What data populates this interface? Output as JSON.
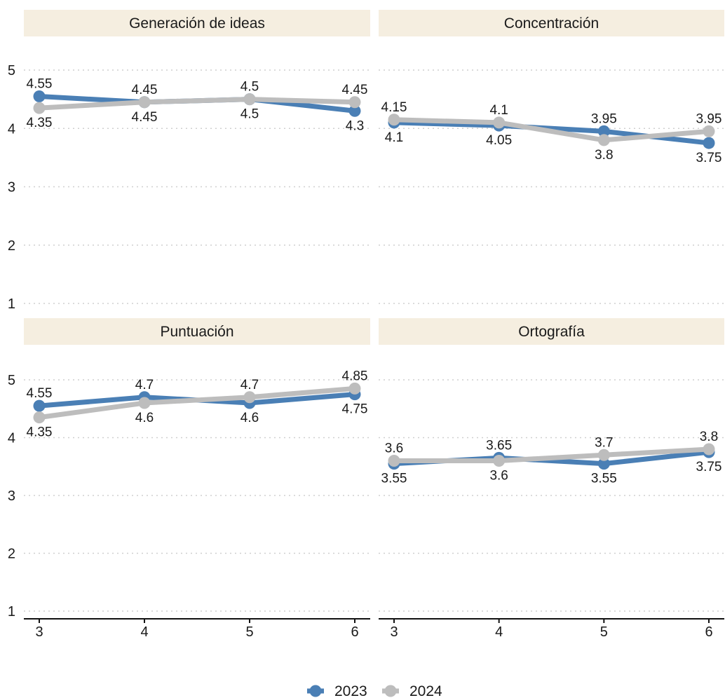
{
  "chart_data": {
    "type": "line",
    "colors": {
      "2023": "#4a7fb5",
      "2024": "#bdbdbd",
      "strip": "#f5eee0"
    },
    "x": [
      3,
      4,
      5,
      6
    ],
    "ylim": [
      1,
      5
    ],
    "y_ticks": [
      1,
      2,
      3,
      4,
      5
    ],
    "grid": "horizontal dotted",
    "legend_position": "bottom",
    "legend": [
      "2023",
      "2024"
    ],
    "panels": [
      {
        "title": "Generación de ideas",
        "series": [
          {
            "name": "2023",
            "values": [
              4.55,
              4.45,
              4.5,
              4.3
            ]
          },
          {
            "name": "2024",
            "values": [
              4.35,
              4.45,
              4.5,
              4.45
            ]
          }
        ]
      },
      {
        "title": "Concentración",
        "series": [
          {
            "name": "2023",
            "values": [
              4.1,
              4.05,
              3.95,
              3.75
            ]
          },
          {
            "name": "2024",
            "values": [
              4.15,
              4.1,
              3.8,
              3.95
            ]
          }
        ]
      },
      {
        "title": "Puntuación",
        "series": [
          {
            "name": "2023",
            "values": [
              4.55,
              4.7,
              4.6,
              4.75
            ]
          },
          {
            "name": "2024",
            "values": [
              4.35,
              4.6,
              4.7,
              4.85
            ]
          }
        ]
      },
      {
        "title": "Ortografía",
        "series": [
          {
            "name": "2023",
            "values": [
              3.55,
              3.65,
              3.55,
              3.75
            ]
          },
          {
            "name": "2024",
            "values": [
              3.6,
              3.6,
              3.7,
              3.8
            ]
          }
        ]
      }
    ]
  }
}
